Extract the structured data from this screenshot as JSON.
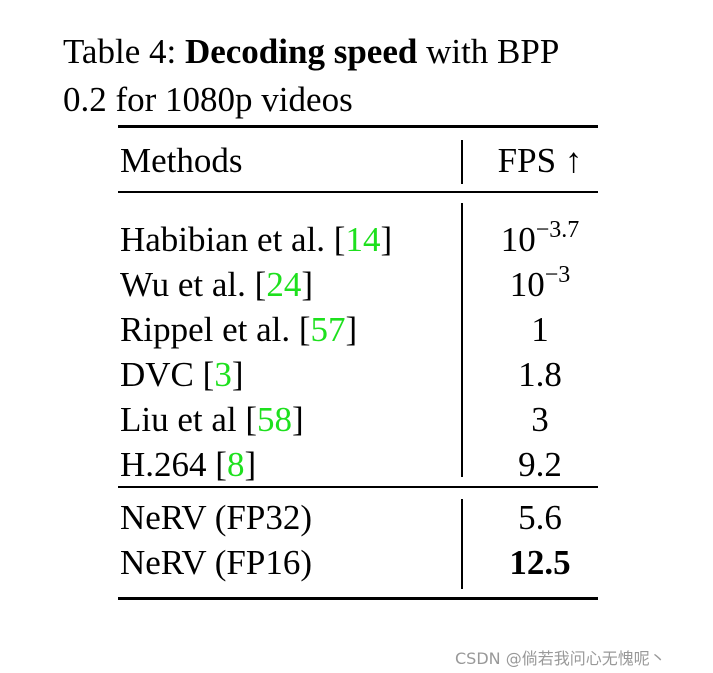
{
  "caption": {
    "label": "Table 4:",
    "bold": "Decoding speed",
    "rest_line1": "with BPP",
    "rest_line2": "0.2 for 1080p videos"
  },
  "table": {
    "header": {
      "methods": "Methods",
      "fps": "FPS ↑"
    },
    "groups": [
      [
        {
          "method": "Habibian et al. [",
          "ref": "14",
          "close": "]",
          "fps": {
            "base": "10",
            "exp": "−3.7"
          }
        },
        {
          "method": "Wu et al. [",
          "ref": "24",
          "close": "]",
          "fps": {
            "base": "10",
            "exp": "−3"
          }
        },
        {
          "method": "Rippel et al. [",
          "ref": "57",
          "close": "]",
          "fps": 1
        },
        {
          "method": "DVC [",
          "ref": "3",
          "close": "]",
          "fps": 1.8
        },
        {
          "method": "Liu et al [",
          "ref": "58",
          "close": "]",
          "fps": 3
        },
        {
          "method": "H.264 [",
          "ref": "8",
          "close": "]",
          "fps": 9.2
        }
      ],
      [
        {
          "method": "NeRV (FP32)",
          "fps": 5.6
        },
        {
          "method": "NeRV (FP16)",
          "fps": 12.5,
          "bold": true
        }
      ]
    ]
  },
  "watermark": "CSDN @倘若我问心无愧呢丶"
}
